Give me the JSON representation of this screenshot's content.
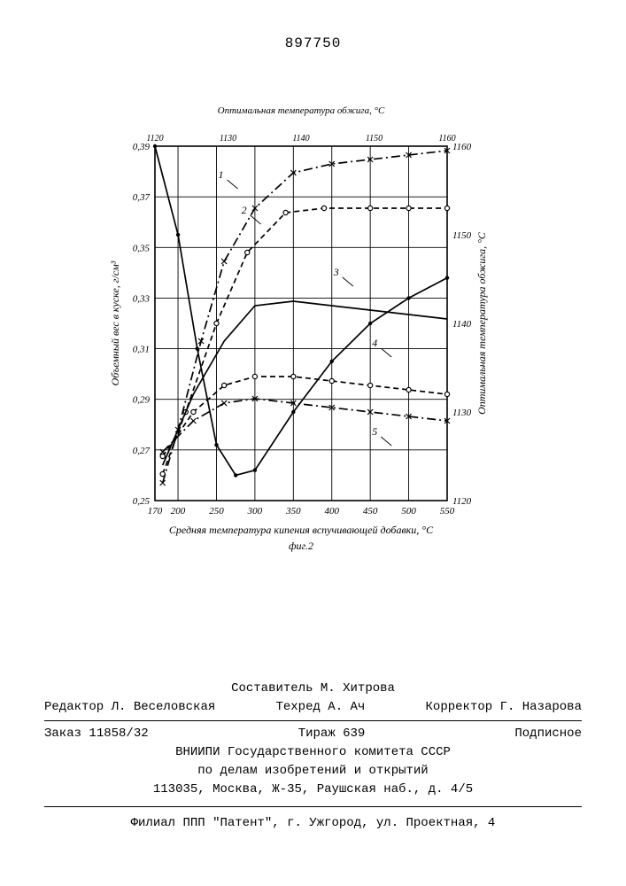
{
  "document": {
    "number": "897750"
  },
  "chart": {
    "type": "line",
    "figure_label": "фиг.2",
    "background_color": "#ffffff",
    "axis_color": "#000000",
    "grid_color": "#000000",
    "line_width": 1.7,
    "grid_line_width": 0.9,
    "x_axis": {
      "label": "Средняя температура кипения вспучивающей добавки, °C",
      "min": 170,
      "max": 550,
      "ticks": [
        170,
        200,
        250,
        300,
        350,
        400,
        450,
        500,
        550
      ],
      "tick_labels": [
        "170",
        "200",
        "250",
        "300",
        "350",
        "400",
        "450",
        "500",
        "550"
      ],
      "label_fontsize": 12
    },
    "y_left": {
      "label": "Объемный вес в куске, г/см³",
      "min": 0.25,
      "max": 0.39,
      "ticks": [
        0.25,
        0.27,
        0.29,
        0.31,
        0.33,
        0.35,
        0.37,
        0.39
      ],
      "tick_labels": [
        "0,25",
        "0,27",
        "0,29",
        "0,31",
        "0,33",
        "0,35",
        "0,37",
        "0,39"
      ],
      "label_fontsize": 12
    },
    "y_right": {
      "label": "Оптимальная температура обжига, °C",
      "min": 1120,
      "max": 1160,
      "ticks": [
        1120,
        1130,
        1140,
        1150,
        1160
      ],
      "tick_labels": [
        "1120",
        "1130",
        "1140",
        "1150",
        "1160"
      ],
      "label_fontsize": 12
    },
    "series": [
      {
        "id": "1",
        "label": "1",
        "y_axis": "right",
        "style": "dashdot",
        "marker": "x",
        "color": "#000000",
        "points": [
          [
            180,
            1122
          ],
          [
            200,
            1128
          ],
          [
            230,
            1138
          ],
          [
            260,
            1147
          ],
          [
            300,
            1153
          ],
          [
            350,
            1157
          ],
          [
            400,
            1158
          ],
          [
            450,
            1158.5
          ],
          [
            500,
            1159
          ],
          [
            550,
            1159.5
          ]
        ]
      },
      {
        "id": "2",
        "label": "2",
        "y_axis": "right",
        "style": "dash",
        "marker": "circle",
        "color": "#000000",
        "points": [
          [
            180,
            1123
          ],
          [
            210,
            1130
          ],
          [
            250,
            1140
          ],
          [
            290,
            1148
          ],
          [
            340,
            1152.5
          ],
          [
            390,
            1153
          ],
          [
            450,
            1153
          ],
          [
            500,
            1153
          ],
          [
            550,
            1153
          ]
        ]
      },
      {
        "id": "3",
        "label": "3",
        "y_axis": "right",
        "style": "solid",
        "marker": "none",
        "color": "#000000",
        "points": [
          [
            180,
            1124
          ],
          [
            220,
            1132
          ],
          [
            260,
            1138
          ],
          [
            300,
            1142
          ],
          [
            350,
            1142.5
          ],
          [
            400,
            1142
          ],
          [
            450,
            1141.5
          ],
          [
            500,
            1141
          ],
          [
            550,
            1140.5
          ]
        ]
      },
      {
        "id": "4",
        "label": "4",
        "y_axis": "right",
        "style": "dash",
        "marker": "circle",
        "color": "#000000",
        "points": [
          [
            180,
            1125
          ],
          [
            220,
            1130
          ],
          [
            260,
            1133
          ],
          [
            300,
            1134
          ],
          [
            350,
            1134
          ],
          [
            400,
            1133.5
          ],
          [
            450,
            1133
          ],
          [
            500,
            1132.5
          ],
          [
            550,
            1132
          ]
        ]
      },
      {
        "id": "5",
        "label": "5",
        "y_axis": "right",
        "style": "dashdot",
        "marker": "x",
        "color": "#000000",
        "points": [
          [
            180,
            1125.5
          ],
          [
            220,
            1129
          ],
          [
            260,
            1131
          ],
          [
            300,
            1131.5
          ],
          [
            350,
            1131
          ],
          [
            400,
            1130.5
          ],
          [
            450,
            1130
          ],
          [
            500,
            1129.5
          ],
          [
            550,
            1129
          ]
        ]
      },
      {
        "id": "density",
        "label": "",
        "y_axis": "left",
        "style": "solid",
        "marker": "dot",
        "color": "#000000",
        "points": [
          [
            170,
            0.39
          ],
          [
            200,
            0.355
          ],
          [
            225,
            0.31
          ],
          [
            250,
            0.272
          ],
          [
            275,
            0.26
          ],
          [
            300,
            0.262
          ],
          [
            350,
            0.285
          ],
          [
            400,
            0.305
          ],
          [
            450,
            0.32
          ],
          [
            500,
            0.33
          ],
          [
            550,
            0.338
          ]
        ]
      }
    ],
    "curve_labels": [
      {
        "text": "1",
        "x": 280,
        "y_right": 1155
      },
      {
        "text": "2",
        "x": 310,
        "y_right": 1151
      },
      {
        "text": "3",
        "x": 430,
        "y_right": 1144
      },
      {
        "text": "4",
        "x": 480,
        "y_right": 1136
      },
      {
        "text": "5",
        "x": 480,
        "y_right": 1126
      }
    ]
  },
  "footer": {
    "compiler_label": "Составитель",
    "compiler": "М. Хитрова",
    "editor_label": "Редактор",
    "editor": "Л. Веселовская",
    "techred_label": "Техред",
    "techred": "А. Ач",
    "corrector_label": "Корректор",
    "corrector": "Г. Назарова",
    "order_label": "Заказ",
    "order": "11858/32",
    "print_run_label": "Тираж",
    "print_run": "639",
    "subscription": "Подписное",
    "org1": "ВНИИПИ Государственного комитета СССР",
    "org2": "по делам изобретений и открытий",
    "address": "113035, Москва, Ж-35, Раушская наб., д. 4/5",
    "branch": "Филиал ППП \"Патент\", г. Ужгород, ул. Проектная, 4"
  }
}
